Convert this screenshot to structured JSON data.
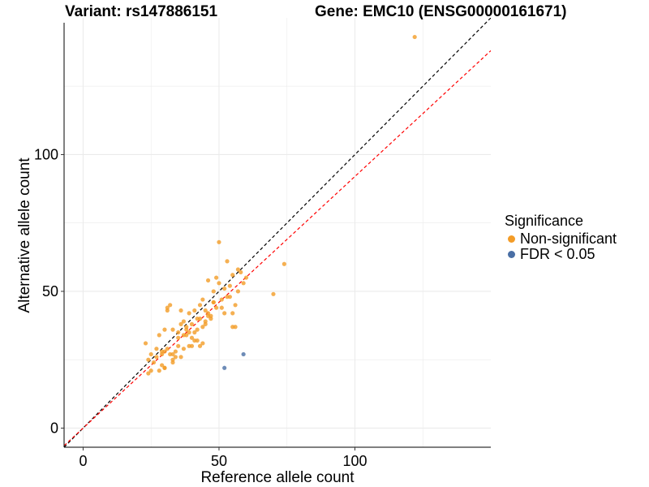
{
  "header": {
    "variant_title": "Variant: rs147886151",
    "gene_title": "Gene: EMC10 (ENSG00000161671)"
  },
  "legend": {
    "title": "Significance",
    "items": [
      {
        "label": "Non-significant",
        "color": "#F39C27"
      },
      {
        "label": "FDR < 0.05",
        "color": "#4A6FA5"
      }
    ]
  },
  "colors": {
    "nonsig": "#F39C27",
    "sig": "#4A6FA5",
    "diagonal": "#000000",
    "fit": "#FF0000",
    "grid": "#EBEBEB"
  },
  "chart_data": {
    "type": "scatter",
    "xlabel": "Reference allele count",
    "ylabel": "Alternative allele count",
    "xlim": [
      -7,
      150
    ],
    "ylim": [
      -7,
      150
    ],
    "xticks": [
      0,
      50,
      100
    ],
    "yticks": [
      0,
      50,
      100
    ],
    "grid": true,
    "legend_position": "right",
    "reference_lines": [
      {
        "name": "y = x",
        "style": "dashed",
        "color": "#000000",
        "slope": 1,
        "intercept": 0
      },
      {
        "name": "fit",
        "style": "dashed",
        "color": "#FF0000",
        "slope": 0.92,
        "intercept": 0
      }
    ],
    "series": [
      {
        "name": "Non-significant",
        "color": "#F39C27",
        "x": [
          122,
          50,
          74,
          70,
          55,
          57,
          53,
          58,
          60,
          54,
          48,
          46,
          51,
          56,
          52,
          49,
          45,
          43,
          47,
          55,
          59,
          41,
          38,
          36,
          33,
          30,
          28,
          31,
          35,
          40,
          44,
          42,
          39,
          37,
          34,
          32,
          29,
          27,
          25,
          24,
          23,
          26,
          30,
          33,
          36,
          39,
          42,
          45,
          48,
          51,
          54,
          57,
          40,
          38,
          35,
          31,
          29,
          27,
          44,
          46,
          43,
          41,
          37,
          34,
          32,
          30,
          28,
          25,
          50,
          53,
          56,
          47,
          42,
          39,
          36,
          33,
          31,
          29,
          41,
          43,
          45,
          49,
          52,
          55,
          35,
          38,
          40,
          44,
          46,
          48,
          37,
          33,
          30,
          24
        ],
        "y": [
          143,
          68,
          60,
          49,
          56,
          58,
          61,
          57,
          55,
          52,
          50,
          54,
          47,
          45,
          42,
          44,
          43,
          45,
          41,
          37,
          53,
          35,
          37,
          38,
          36,
          36,
          34,
          29,
          30,
          33,
          31,
          32,
          30,
          29,
          28,
          27,
          27,
          29,
          27,
          25,
          31,
          24,
          28,
          25,
          43,
          42,
          40,
          39,
          46,
          44,
          48,
          50,
          38,
          36,
          33,
          43,
          28,
          26,
          37,
          41,
          30,
          32,
          34,
          26,
          45,
          22,
          21,
          21,
          53,
          48,
          37,
          40,
          36,
          35,
          26,
          24,
          44,
          23,
          43,
          40,
          38,
          55,
          51,
          42,
          35,
          34,
          30,
          47,
          42,
          46,
          39,
          27,
          22,
          20
        ]
      },
      {
        "name": "FDR < 0.05",
        "color": "#4A6FA5",
        "x": [
          52,
          59
        ],
        "y": [
          22,
          27
        ]
      }
    ]
  }
}
